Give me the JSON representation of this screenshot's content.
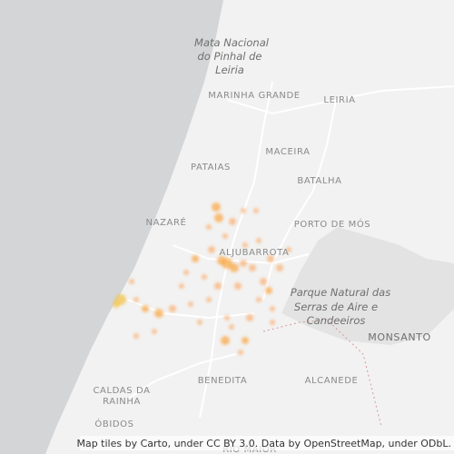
{
  "map": {
    "labels": [
      {
        "lines": [
          "Mata Nacional",
          "do Pinhal de",
          "Leiria"
        ]
      },
      {
        "lines": [
          "MARINHA GRANDE"
        ]
      },
      {
        "lines": [
          "LEIRIA"
        ]
      },
      {
        "lines": [
          "MACEIRA"
        ]
      },
      {
        "lines": [
          "PATAIAS"
        ]
      },
      {
        "lines": [
          "BATALHA"
        ]
      },
      {
        "lines": [
          "NAZARÉ"
        ]
      },
      {
        "lines": [
          "PORTO DE MÓS"
        ]
      },
      {
        "lines": [
          "ALJUBARROTA"
        ]
      },
      {
        "lines": [
          "Parque Natural das",
          "Serras de Aire e",
          "Candeeiros"
        ]
      },
      {
        "lines": [
          "MONSANTO"
        ]
      },
      {
        "lines": [
          "BENEDITA"
        ]
      },
      {
        "lines": [
          "ALCANEDE"
        ]
      },
      {
        "lines": [
          "CALDAS DA",
          "RAINHA"
        ]
      },
      {
        "lines": [
          "ÓBIDOS"
        ]
      },
      {
        "lines": [
          "RIO MAIOR"
        ]
      }
    ],
    "attribution": "Map tiles by Carto, under CC BY 3.0. Data by OpenStreetMap, under ODbL."
  }
}
